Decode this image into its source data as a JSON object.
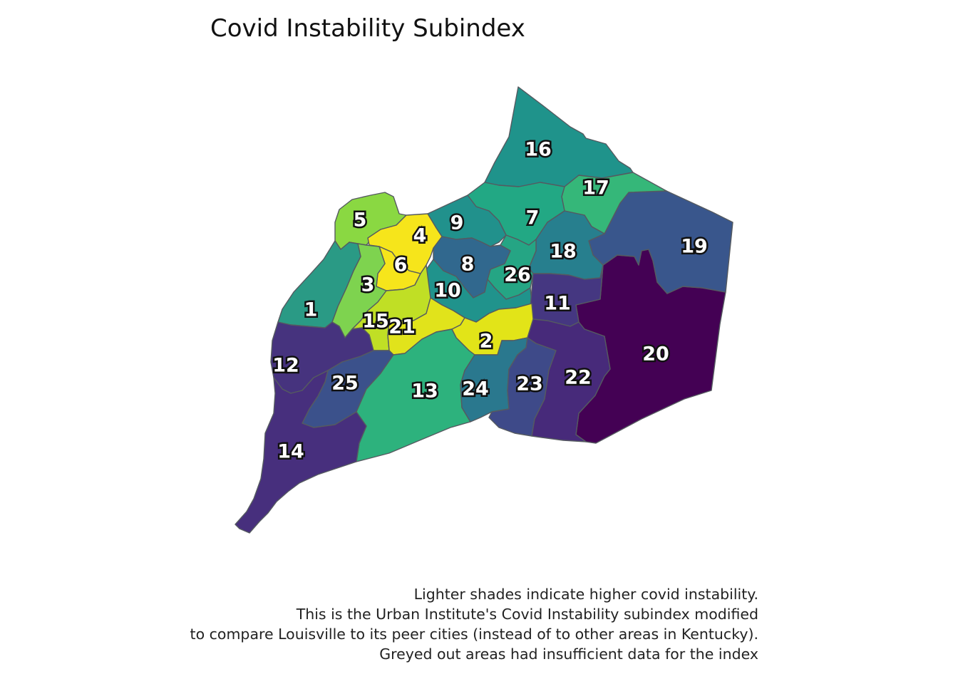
{
  "title": "Covid Instability Subindex",
  "caption": [
    "Lighter shades indicate higher covid instability.",
    "This is the Urban Institute's Covid Instability subindex modified",
    "to compare Louisville to its peer cities (instead of to other areas in Kentucky).",
    "Greyed out areas had insufficient data for the index"
  ],
  "colors": {
    "border": "#555a60",
    "scale": [
      "#440154",
      "#472d7b",
      "#3b528b",
      "#2c728e",
      "#21908d",
      "#27ad81",
      "#5cc863",
      "#aadc32",
      "#fde725"
    ]
  },
  "districts": [
    {
      "id": "1",
      "label": "1",
      "color": "#2a9a85"
    },
    {
      "id": "2",
      "label": "2",
      "color": "#e2e418"
    },
    {
      "id": "3",
      "label": "3",
      "color": "#7ed34f"
    },
    {
      "id": "4",
      "label": "4",
      "color": "#f6e51b"
    },
    {
      "id": "5",
      "label": "5",
      "color": "#8ad842"
    },
    {
      "id": "6",
      "label": "6",
      "color": "#f6e51b"
    },
    {
      "id": "7",
      "label": "7",
      "color": "#22a884"
    },
    {
      "id": "8",
      "label": "8",
      "color": "#31688e"
    },
    {
      "id": "9",
      "label": "9",
      "color": "#21918c"
    },
    {
      "id": "10",
      "label": "10",
      "color": "#20938c"
    },
    {
      "id": "11",
      "label": "11",
      "color": "#453781"
    },
    {
      "id": "12",
      "label": "12",
      "color": "#46337e"
    },
    {
      "id": "13",
      "label": "13",
      "color": "#2db27d"
    },
    {
      "id": "14",
      "label": "14",
      "color": "#472f7d"
    },
    {
      "id": "15",
      "label": "15",
      "color": "#c0df25"
    },
    {
      "id": "16",
      "label": "16",
      "color": "#1f938b"
    },
    {
      "id": "17",
      "label": "17",
      "color": "#35b779"
    },
    {
      "id": "18",
      "label": "18",
      "color": "#277f8e"
    },
    {
      "id": "19",
      "label": "19",
      "color": "#39568c"
    },
    {
      "id": "20",
      "label": "20",
      "color": "#440154"
    },
    {
      "id": "21",
      "label": "21",
      "color": "#e1e31b"
    },
    {
      "id": "22",
      "label": "22",
      "color": "#472a7a"
    },
    {
      "id": "23",
      "label": "23",
      "color": "#3e4a89"
    },
    {
      "id": "24",
      "label": "24",
      "color": "#2a788e"
    },
    {
      "id": "25",
      "label": "25",
      "color": "#3b518b"
    },
    {
      "id": "26",
      "label": "26",
      "color": "#25a584"
    }
  ]
}
